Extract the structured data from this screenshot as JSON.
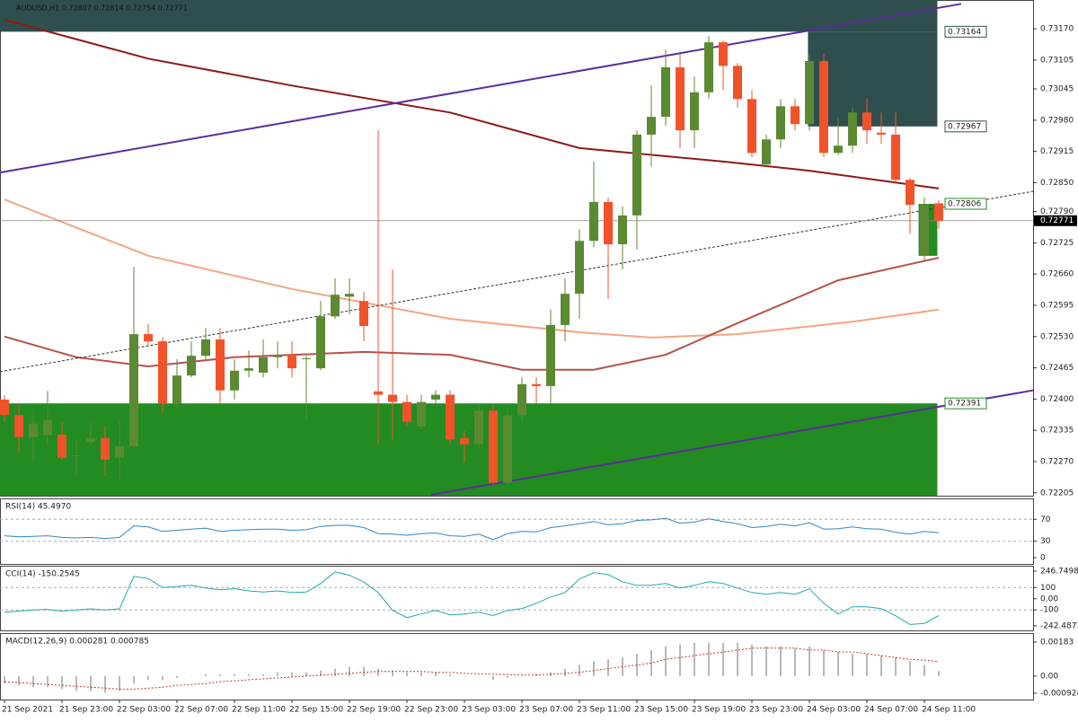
{
  "chart_data": [
    {
      "type": "candlestick",
      "title": "AUDUSD,H1  0.72807 0.72814 0.72754 0.72771",
      "categories": [
        "21 Sep 2021",
        null,
        null,
        null,
        "21 Sep 23:00",
        null,
        null,
        null,
        "22 Sep 03:00",
        null,
        null,
        null,
        "22 Sep 07:00",
        null,
        null,
        null,
        "22 Sep 11:00",
        null,
        null,
        null,
        "22 Sep 15:00",
        null,
        null,
        null,
        "22 Sep 19:00",
        null,
        null,
        null,
        "22 Sep 23:00",
        null,
        null,
        null,
        "23 Sep 03:00",
        null,
        null,
        null,
        "23 Sep 07:00",
        null,
        null,
        null,
        "23 Sep 11:00",
        null,
        null,
        null,
        "23 Sep 15:00",
        null,
        null,
        null,
        "23 Sep 19:00",
        null,
        null,
        null,
        "23 Sep 23:00",
        null,
        null,
        null,
        "24 Sep 03:00",
        null,
        null,
        null,
        "24 Sep 07:00",
        null,
        null,
        null,
        "24 Sep 11:00",
        null
      ],
      "xlim": [
        -0.3125,
        71.5625
      ],
      "ylim": [
        0.72199,
        0.7323
      ],
      "yticks": [
        {
          "value": 0.7317,
          "label": "0.73170"
        },
        0.73105,
        0.73045,
        {
          "value": 0.7298,
          "label": "0.72980"
        },
        0.72915,
        {
          "value": 0.7285,
          "label": "0.72850"
        },
        {
          "value": 0.7279,
          "label": "0.72790"
        },
        0.72725,
        {
          "value": 0.7266,
          "label": "0.72660"
        },
        0.72595,
        {
          "value": 0.7253,
          "label": "0.72530"
        },
        0.72465,
        {
          "value": 0.724,
          "label": "0.72400"
        },
        0.72335,
        {
          "value": 0.7227,
          "label": "0.72270"
        },
        0.72205
      ],
      "open": [
        0.72399,
        0.72367,
        0.72321,
        0.72325,
        0.72326,
        0.72283,
        0.72311,
        0.72319,
        0.72278,
        0.72302,
        0.72535,
        0.7252,
        0.7239,
        0.72449,
        0.7249,
        0.72524,
        0.72418,
        0.72459,
        0.72455,
        0.72487,
        0.7249,
        0.72483,
        0.72464,
        0.72572,
        0.72613,
        0.72604,
        0.72416,
        0.72409,
        0.72394,
        0.72343,
        0.72399,
        0.72409,
        0.72319,
        0.72306,
        0.72376,
        0.72226,
        0.72366,
        0.72431,
        0.72427,
        0.72554,
        0.72619,
        0.72729,
        0.7281,
        0.72722,
        0.72782,
        0.7295,
        0.72987,
        0.7309,
        0.72959,
        0.73038,
        0.73142,
        0.73093,
        0.73024,
        0.72888,
        0.7294,
        0.73009,
        0.72972,
        0.73103,
        0.72912,
        0.72927,
        0.72996,
        0.72954,
        0.7295,
        0.72856,
        0.72698,
        0.72807
      ],
      "high": [
        0.72408,
        0.72389,
        0.7238,
        0.72417,
        0.72352,
        0.72314,
        0.72352,
        0.72343,
        0.72352,
        0.72675,
        0.72557,
        0.72529,
        0.72483,
        0.7252,
        0.72548,
        0.72548,
        0.72483,
        0.72501,
        0.72524,
        0.7252,
        0.7252,
        0.72492,
        0.72604,
        0.72651,
        0.72651,
        0.72623,
        0.72959,
        0.7267,
        0.72409,
        0.72409,
        0.72418,
        0.72418,
        0.72334,
        0.7239,
        0.7239,
        0.7238,
        0.72446,
        0.72445,
        0.72586,
        0.72651,
        0.72753,
        0.72894,
        0.72819,
        0.72801,
        0.72959,
        0.73052,
        0.73127,
        0.73118,
        0.73071,
        0.73155,
        0.73146,
        0.73099,
        0.73043,
        0.7295,
        0.73024,
        0.73024,
        0.73118,
        0.73118,
        0.72987,
        0.73006,
        0.73024,
        0.72996,
        0.72996,
        0.7286,
        0.72819,
        0.72814
      ],
      "low": [
        0.72353,
        0.72288,
        0.72269,
        0.72306,
        0.72274,
        0.7224,
        0.72306,
        0.7224,
        0.72231,
        0.72297,
        0.72511,
        0.72371,
        0.7238,
        0.72445,
        0.72483,
        0.7239,
        0.72399,
        0.72445,
        0.72445,
        0.72464,
        0.72445,
        0.72356,
        0.7246,
        0.72567,
        0.72576,
        0.7252,
        0.72306,
        0.72315,
        0.72343,
        0.72338,
        0.7239,
        0.72306,
        0.72269,
        0.72297,
        0.72222,
        0.72222,
        0.72353,
        0.7239,
        0.7239,
        0.7252,
        0.72567,
        0.72716,
        0.72608,
        0.7267,
        0.72711,
        0.72884,
        0.72968,
        0.72922,
        0.72922,
        0.73024,
        0.73043,
        0.73006,
        0.72903,
        0.72884,
        0.72922,
        0.72959,
        0.72959,
        0.72903,
        0.72908,
        0.72912,
        0.72931,
        0.72931,
        0.72847,
        0.72744,
        0.72688,
        0.72754
      ],
      "close": [
        0.72367,
        0.72321,
        0.72349,
        0.72356,
        0.72278,
        0.72283,
        0.72319,
        0.72274,
        0.72302,
        0.72535,
        0.7252,
        0.7239,
        0.72449,
        0.7249,
        0.72524,
        0.72418,
        0.72459,
        0.72464,
        0.72487,
        0.7249,
        0.72464,
        0.72485,
        0.72572,
        0.72617,
        0.72619,
        0.72552,
        0.72409,
        0.72394,
        0.72353,
        0.72394,
        0.72409,
        0.72316,
        0.72306,
        0.72376,
        0.72226,
        0.72366,
        0.72431,
        0.72427,
        0.72554,
        0.72619,
        0.72729,
        0.7281,
        0.72722,
        0.72782,
        0.7295,
        0.72987,
        0.7309,
        0.72959,
        0.73038,
        0.73142,
        0.73093,
        0.73024,
        0.72912,
        0.7294,
        0.73009,
        0.72972,
        0.73103,
        0.72912,
        0.72927,
        0.72996,
        0.72959,
        0.7295,
        0.72856,
        0.72804,
        0.72806,
        0.72771
      ],
      "up_color": "#5b8a32",
      "down_color": "#f0532a",
      "zones": [
        {
          "low": 0.73164,
          "high": 0.7323,
          "start": -0.3125,
          "end": 64.9,
          "color": "#2f4f4f"
        },
        {
          "low": 0.72967,
          "high": 0.73164,
          "start": 55.9,
          "end": 64.9,
          "color": "#2f4f4f"
        },
        {
          "low": 0.72199,
          "high": 0.72391,
          "start": -0.3125,
          "end": 64.9,
          "color": "#228b22"
        },
        {
          "low": 0.72698,
          "high": 0.72806,
          "start": 63.6,
          "end": 64.9,
          "color": "#228b22"
        }
      ],
      "overlays": [
        {
          "x": [
            0,
            10,
            20,
            31,
            40,
            50,
            56,
            65
          ],
          "values": [
            0.73189,
            0.73108,
            0.73052,
            0.72996,
            0.72922,
            0.72894,
            0.72875,
            0.72838
          ],
          "color": "#8b1a1a",
          "width": 2
        },
        {
          "x": [
            0,
            10,
            20,
            31,
            40,
            45,
            51,
            59,
            65
          ],
          "values": [
            0.72815,
            0.72698,
            0.72629,
            0.72567,
            0.72539,
            0.72528,
            0.72535,
            0.72561,
            0.72586
          ],
          "color": "#f4a582",
          "width": 2
        },
        {
          "x": [
            0,
            5,
            10,
            16,
            25,
            31,
            36,
            41,
            46,
            51,
            58,
            65
          ],
          "values": [
            0.7253,
            0.72487,
            0.72468,
            0.72487,
            0.72498,
            0.72492,
            0.72461,
            0.72461,
            0.72492,
            0.72558,
            0.72647,
            0.72694
          ],
          "color": "#b5524a",
          "width": 2
        },
        {
          "x": [
            -0.31,
            66.56
          ],
          "values": [
            0.72871,
            0.73222
          ],
          "color": "#5b2c9c",
          "width": 2
        },
        {
          "x": [
            29.69,
            71.56
          ],
          "values": [
            0.72201,
            0.72418
          ],
          "color": "#5b2c9c",
          "width": 2
        },
        {
          "x": [
            -0.31,
            71.56
          ],
          "values": [
            0.72457,
            0.72832
          ],
          "color": "#333333",
          "width": 1,
          "dashed": true
        }
      ],
      "levels": [
        {
          "value": 0.73164,
          "color": "#2f4f4f"
        },
        {
          "value": 0.72967,
          "color": "#2f4f4f"
        },
        {
          "value": 0.72806,
          "color": "#228b22"
        },
        {
          "value": 0.72391,
          "color": "#228b22"
        }
      ],
      "last": 0.72771
    },
    {
      "type": "line",
      "title": "RSI(14) 45.4970",
      "color": "#2f86c8",
      "ylim": [
        0,
        100
      ],
      "yticks": [
        70,
        30,
        0
      ],
      "guides": [
        70,
        30
      ],
      "values": [
        40,
        38,
        39,
        40,
        37,
        36,
        37,
        35,
        37,
        58,
        56,
        48,
        50,
        52,
        54,
        48,
        50,
        51,
        52,
        52,
        50,
        51,
        57,
        59,
        59,
        55,
        44,
        43,
        41,
        44,
        45,
        40,
        39,
        43,
        33,
        44,
        48,
        47,
        55,
        58,
        62,
        66,
        60,
        62,
        68,
        69,
        72,
        63,
        65,
        71,
        66,
        62,
        55,
        57,
        61,
        58,
        64,
        52,
        53,
        56,
        53,
        52,
        46,
        43,
        48,
        45.497
      ]
    },
    {
      "type": "line",
      "title": "CCI(14) -150.2545",
      "color": "#20a8b0",
      "ylim": [
        -242.4873,
        246.7498
      ],
      "yticks": [
        246.7498,
        100,
        {
          "value": 0,
          "label": "0.00"
        },
        -100,
        -242.4873
      ],
      "guides": [
        100,
        -100
      ],
      "values": [
        -120,
        -110,
        -100,
        -95,
        -110,
        -100,
        -90,
        -100,
        -90,
        200,
        180,
        100,
        110,
        120,
        96,
        80,
        90,
        70,
        60,
        70,
        56,
        60,
        136,
        240,
        210,
        150,
        56,
        -104,
        -168,
        -136,
        -104,
        -144,
        -136,
        -120,
        -150,
        -104,
        -88,
        -40,
        16,
        56,
        176,
        232,
        216,
        152,
        120,
        120,
        136,
        96,
        120,
        152,
        136,
        96,
        56,
        40,
        56,
        40,
        88,
        -40,
        -136,
        -72,
        -72,
        -88,
        -152,
        -230,
        -220,
        -150.2545
      ]
    },
    {
      "type": "macd",
      "title": "MACD(12,26,9) 0.000281 0.000785",
      "color": "#b8b8b8",
      "signal_color": "#c0392b",
      "ylim": [
        -0.000924,
        0.00183
      ],
      "yticks": [
        0.00183,
        {
          "value": 0,
          "label": "0.00"
        },
        -0.000924
      ],
      "values": [
        -0.0004,
        -0.0005,
        -0.0006,
        -0.0006,
        -0.0007,
        -0.0008,
        -0.0008,
        -0.0009,
        -0.0008,
        -0.0004,
        -0.0002,
        -0.0002,
        -0.0001,
        0,
        0.0001,
        0.0001,
        0.0001,
        0.0001,
        0.0001,
        0.0002,
        0.0002,
        0.0002,
        0.0003,
        0.0004,
        0.0005,
        0.0005,
        0.0004,
        0.0003,
        0.0002,
        0.0002,
        0.0002,
        0.0001,
        0,
        0,
        -0.0002,
        -0.0001,
        0,
        0.0001,
        0.0002,
        0.0004,
        0.0006,
        0.0008,
        0.0009,
        0.001,
        0.0012,
        0.0014,
        0.0016,
        0.0017,
        0.0018,
        0.0018,
        0.00178,
        0.0018,
        0.0017,
        0.0016,
        0.0016,
        0.0015,
        0.0016,
        0.0014,
        0.0013,
        0.0012,
        0.0012,
        0.0011,
        0.001,
        0.0008,
        0.0006,
        0.000281
      ],
      "signal": [
        -0.0003,
        -0.00035,
        -0.0004,
        -0.00045,
        -0.0005,
        -0.00055,
        -0.0006,
        -0.00065,
        -0.0007,
        -0.0007,
        -0.00065,
        -0.0006,
        -0.0005,
        -0.00045,
        -0.0004,
        -0.0003,
        -0.00025,
        -0.0002,
        -0.00015,
        -0.0001,
        -5e-05,
        0,
        5e-05,
        0.0001,
        0.00015,
        0.0002,
        0.00025,
        0.00025,
        0.00025,
        0.00025,
        0.0002,
        0.0002,
        0.00015,
        0.00012,
        0.0001,
        8e-05,
        6e-05,
        6e-05,
        0.0001,
        0.00015,
        0.0002,
        0.0003,
        0.0004,
        0.0005,
        0.0006,
        0.0007,
        0.0009,
        0.001,
        0.0011,
        0.0012,
        0.0013,
        0.0014,
        0.0015,
        0.0015,
        0.0015,
        0.0015,
        0.0014,
        0.0014,
        0.0013,
        0.0013,
        0.0012,
        0.0011,
        0.001,
        0.0009,
        0.00085,
        0.000785
      ]
    }
  ]
}
